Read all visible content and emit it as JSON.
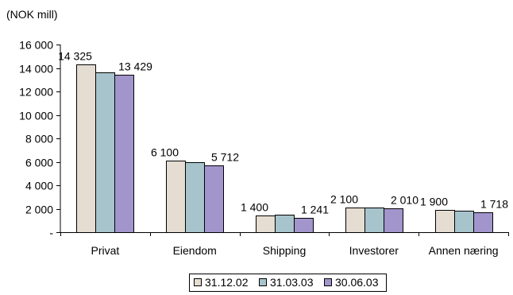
{
  "chart_data": {
    "type": "bar",
    "unit_label": "(NOK mill)",
    "categories": [
      "Privat",
      "Eiendom",
      "Shipping",
      "Investorer",
      "Annen næring"
    ],
    "series": [
      {
        "name": "31.12.02",
        "values": [
          14325,
          6100,
          1400,
          2100,
          1900
        ],
        "color": "#e5dcd2"
      },
      {
        "name": "31.03.03",
        "values": [
          13600,
          5950,
          1520,
          2100,
          1830
        ],
        "color": "#a7c4cc"
      },
      {
        "name": "30.06.03",
        "values": [
          13429,
          5712,
          1241,
          2010,
          1718
        ],
        "color": "#a295cc"
      }
    ],
    "data_labels": [
      [
        "14 325",
        "6 100",
        "1 400",
        "2 100",
        "1 900"
      ],
      [
        "",
        "",
        "",
        "",
        ""
      ],
      [
        "13 429",
        "5 712",
        "1 241",
        "2 010",
        "1 718"
      ]
    ],
    "y_ticks": [
      {
        "value": 0,
        "label": "-"
      },
      {
        "value": 2000,
        "label": "2 000"
      },
      {
        "value": 4000,
        "label": "4 000"
      },
      {
        "value": 6000,
        "label": "6 000"
      },
      {
        "value": 8000,
        "label": "8 000"
      },
      {
        "value": 10000,
        "label": "10 000"
      },
      {
        "value": 12000,
        "label": "12 000"
      },
      {
        "value": 14000,
        "label": "14 000"
      },
      {
        "value": 16000,
        "label": "16 000"
      }
    ],
    "ylim": [
      0,
      16000
    ],
    "grid": false,
    "legend_position": "bottom"
  }
}
